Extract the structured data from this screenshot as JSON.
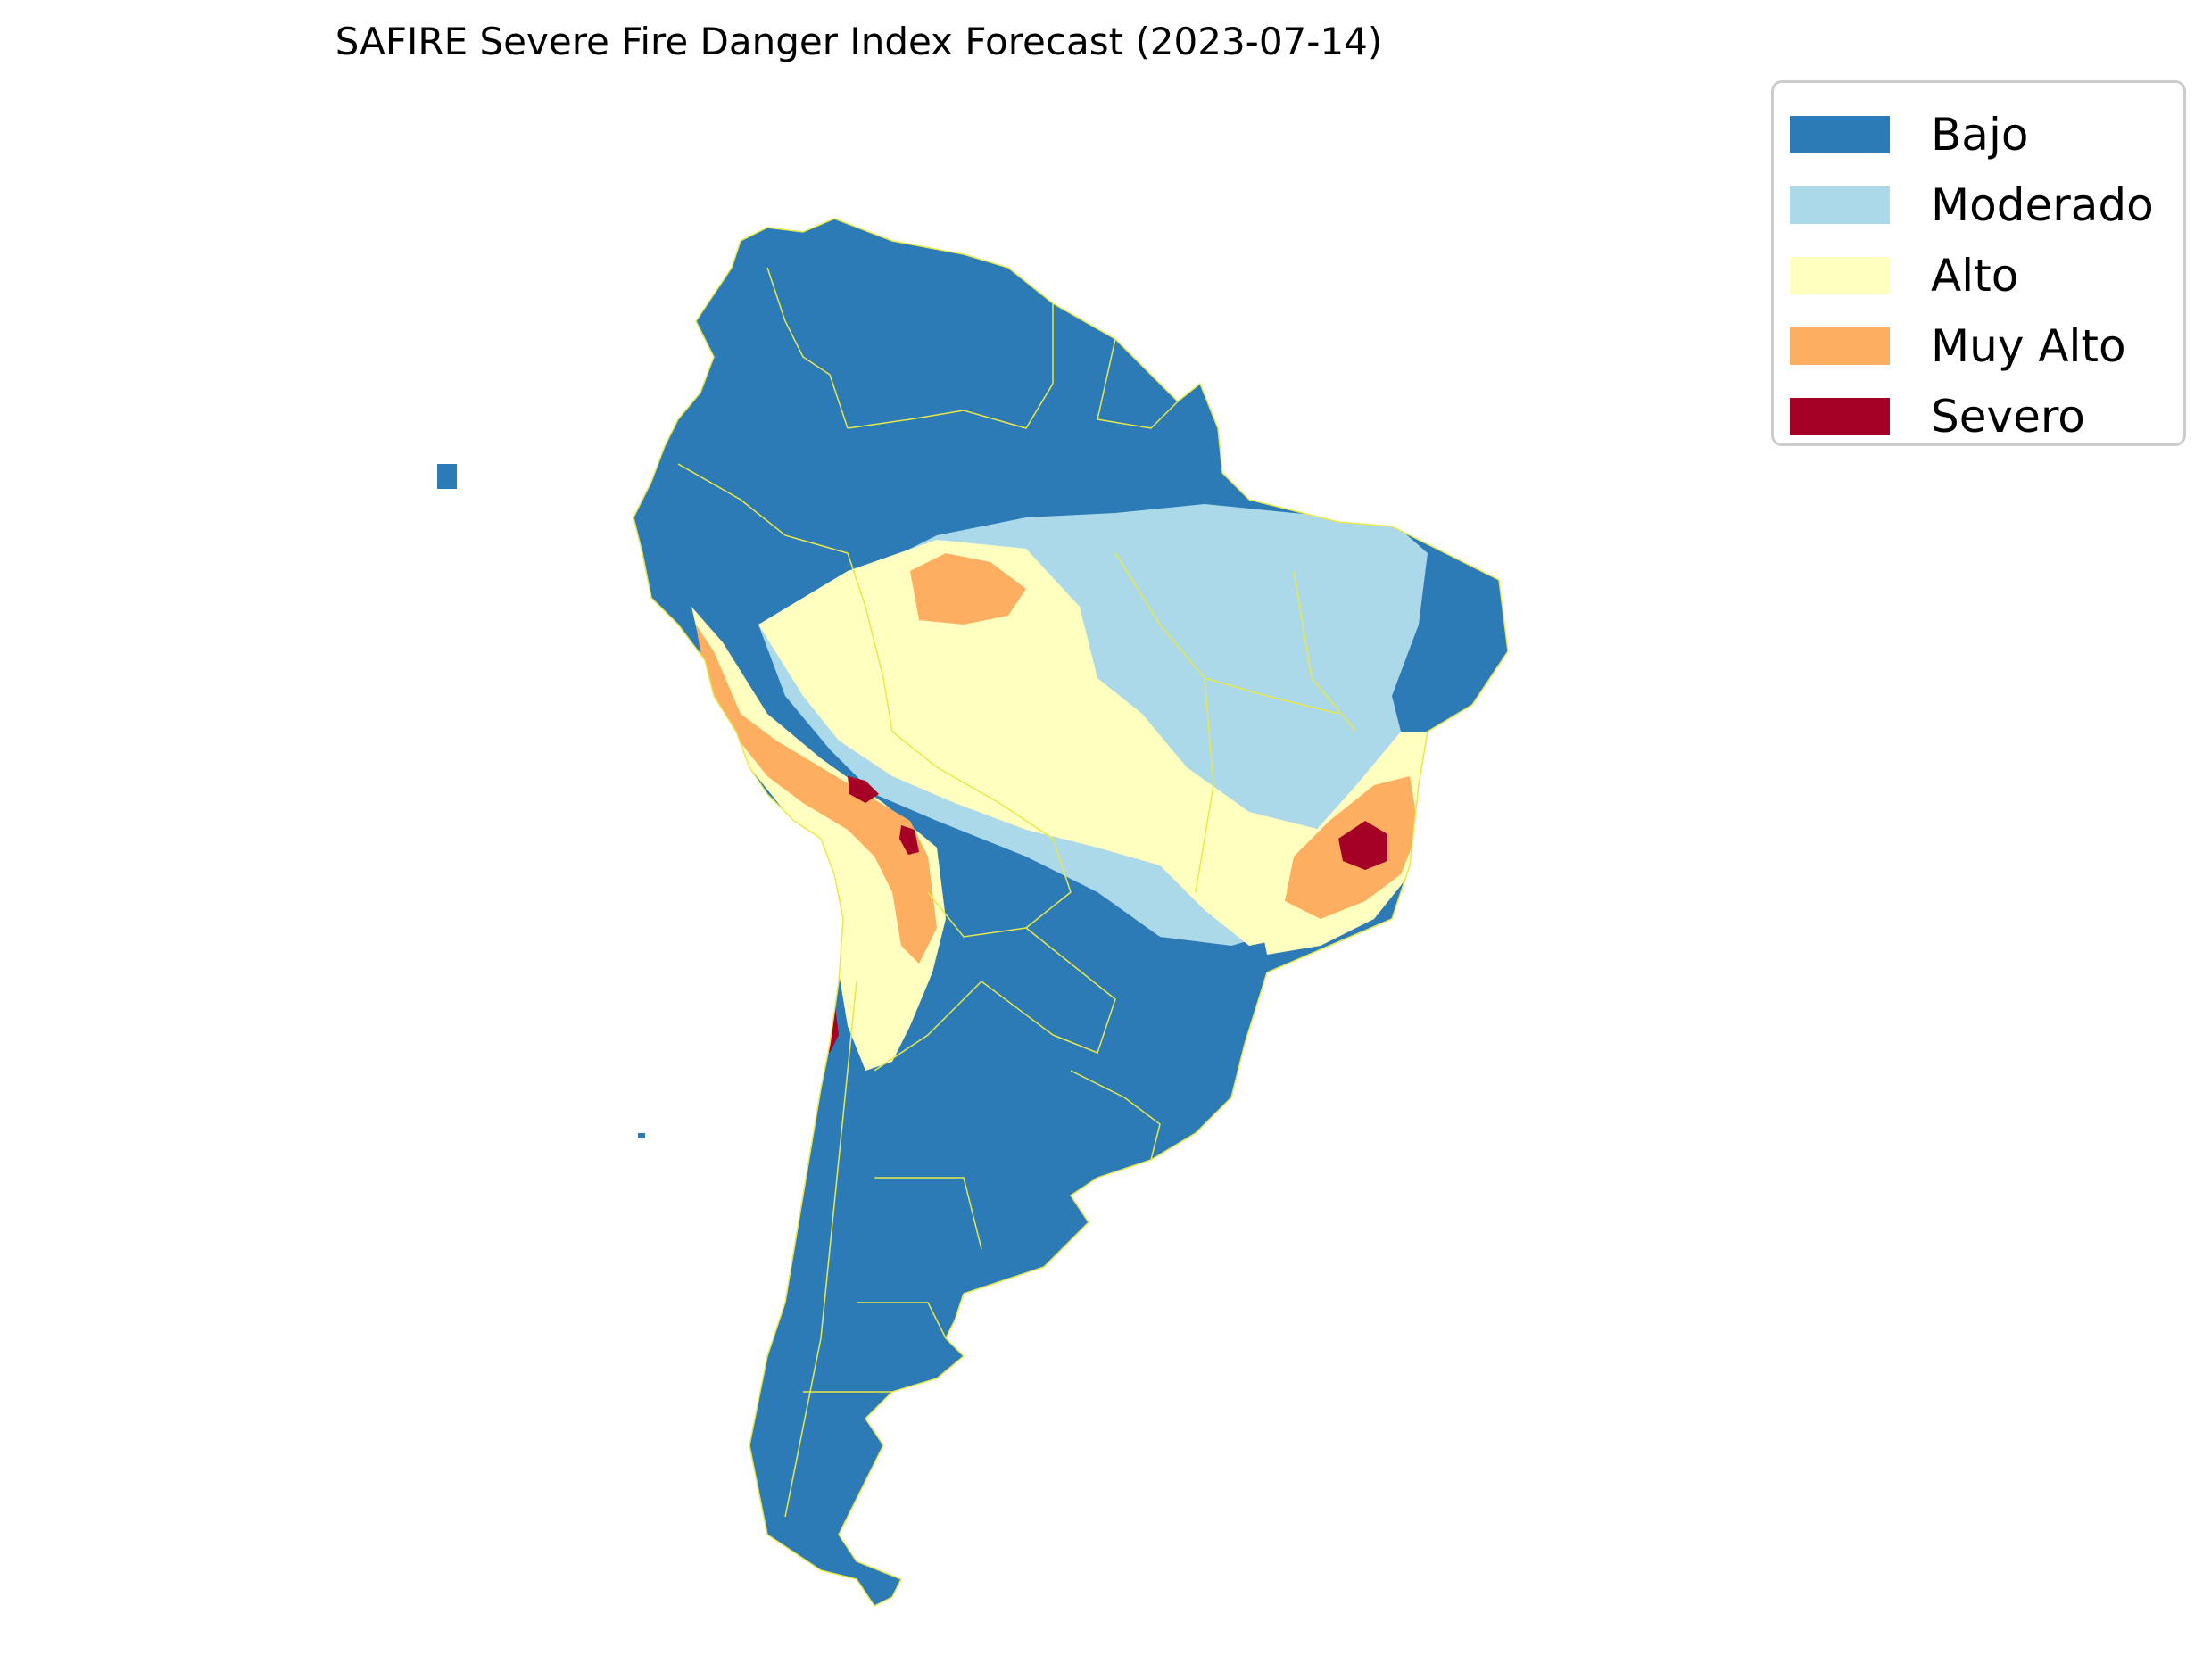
{
  "title": "SAFIRE Severe Fire Danger Index Forecast (2023-07-14)",
  "legend": {
    "items": [
      {
        "label": "Bajo",
        "color": "#2c7bb6"
      },
      {
        "label": "Moderado",
        "color": "#abd9e9"
      },
      {
        "label": "Alto",
        "color": "#ffffbf"
      },
      {
        "label": "Muy Alto",
        "color": "#fdae61"
      },
      {
        "label": "Severo",
        "color": "#a50026"
      }
    ]
  },
  "map": {
    "region": "South America",
    "boundary_color": "#e8e84a",
    "background": "#ffffff"
  }
}
